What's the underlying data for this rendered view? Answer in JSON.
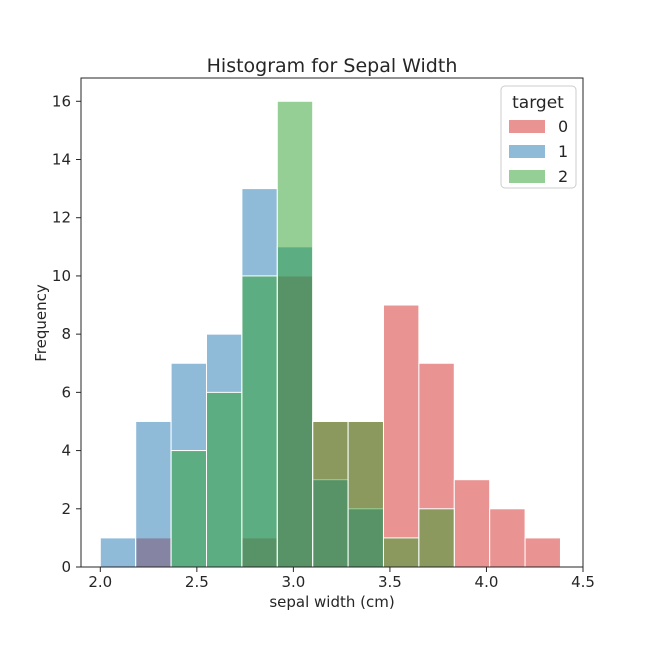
{
  "chart_data": {
    "type": "bar",
    "subtype": "overlaid-histogram",
    "title": "Histogram for Sepal Width",
    "xlabel": "sepal width (cm)",
    "ylabel": "Frequency",
    "xlim": [
      1.9,
      4.5
    ],
    "ylim": [
      0,
      16.8
    ],
    "xticks": [
      "2.0",
      "2.5",
      "3.0",
      "3.5",
      "4.0",
      "4.5"
    ],
    "xtick_values": [
      2.0,
      2.5,
      3.0,
      3.5,
      4.0,
      4.5
    ],
    "yticks": [
      "0",
      "2",
      "4",
      "6",
      "8",
      "10",
      "12",
      "14",
      "16"
    ],
    "ytick_values": [
      0,
      2,
      4,
      6,
      8,
      10,
      12,
      14,
      16
    ],
    "grid": false,
    "legend": {
      "title": "target",
      "placement": "top-right"
    },
    "bin_edges": [
      2.0,
      2.1833,
      2.3667,
      2.55,
      2.7333,
      2.9167,
      3.1,
      3.2833,
      3.4667,
      3.65,
      3.8333,
      4.0167,
      4.2,
      4.3833
    ],
    "series": [
      {
        "name": "0",
        "color": "#d62728",
        "values": [
          0,
          1,
          0,
          0,
          1,
          10,
          5,
          5,
          9,
          7,
          3,
          2,
          1
        ]
      },
      {
        "name": "1",
        "color": "#1f77b4",
        "values": [
          1,
          5,
          7,
          8,
          13,
          11,
          3,
          2,
          0,
          0,
          0,
          0,
          0
        ]
      },
      {
        "name": "2",
        "color": "#2ca02c",
        "values": [
          0,
          0,
          4,
          6,
          10,
          16,
          5,
          5,
          1,
          2,
          0,
          0,
          0
        ]
      }
    ]
  }
}
